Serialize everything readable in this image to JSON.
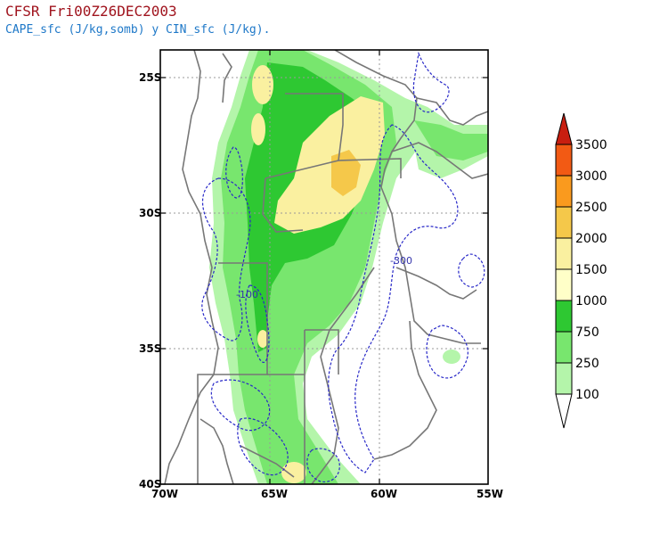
{
  "header": {
    "title": "CFSR Fri00Z26DEC2003",
    "subtitle": "CAPE_sfc (J/kg,somb) y CIN_sfc (J/kg)."
  },
  "map": {
    "lat_labels": [
      "25S",
      "30S",
      "35S",
      "40S"
    ],
    "lon_labels": [
      "70W",
      "65W",
      "60W",
      "55W"
    ],
    "contour_labels": [
      "-100",
      "-300"
    ]
  },
  "colorbar": {
    "levels": [
      "3500",
      "3000",
      "2500",
      "2000",
      "1500",
      "1000",
      "750",
      "250",
      "100"
    ],
    "colors": [
      "#c81e10",
      "#f25a14",
      "#fa9a1e",
      "#f5c84a",
      "#faf0a0",
      "#ffffc8",
      "#2ec832",
      "#78e66e",
      "#b4f5aa",
      "#e6ffe0"
    ]
  }
}
